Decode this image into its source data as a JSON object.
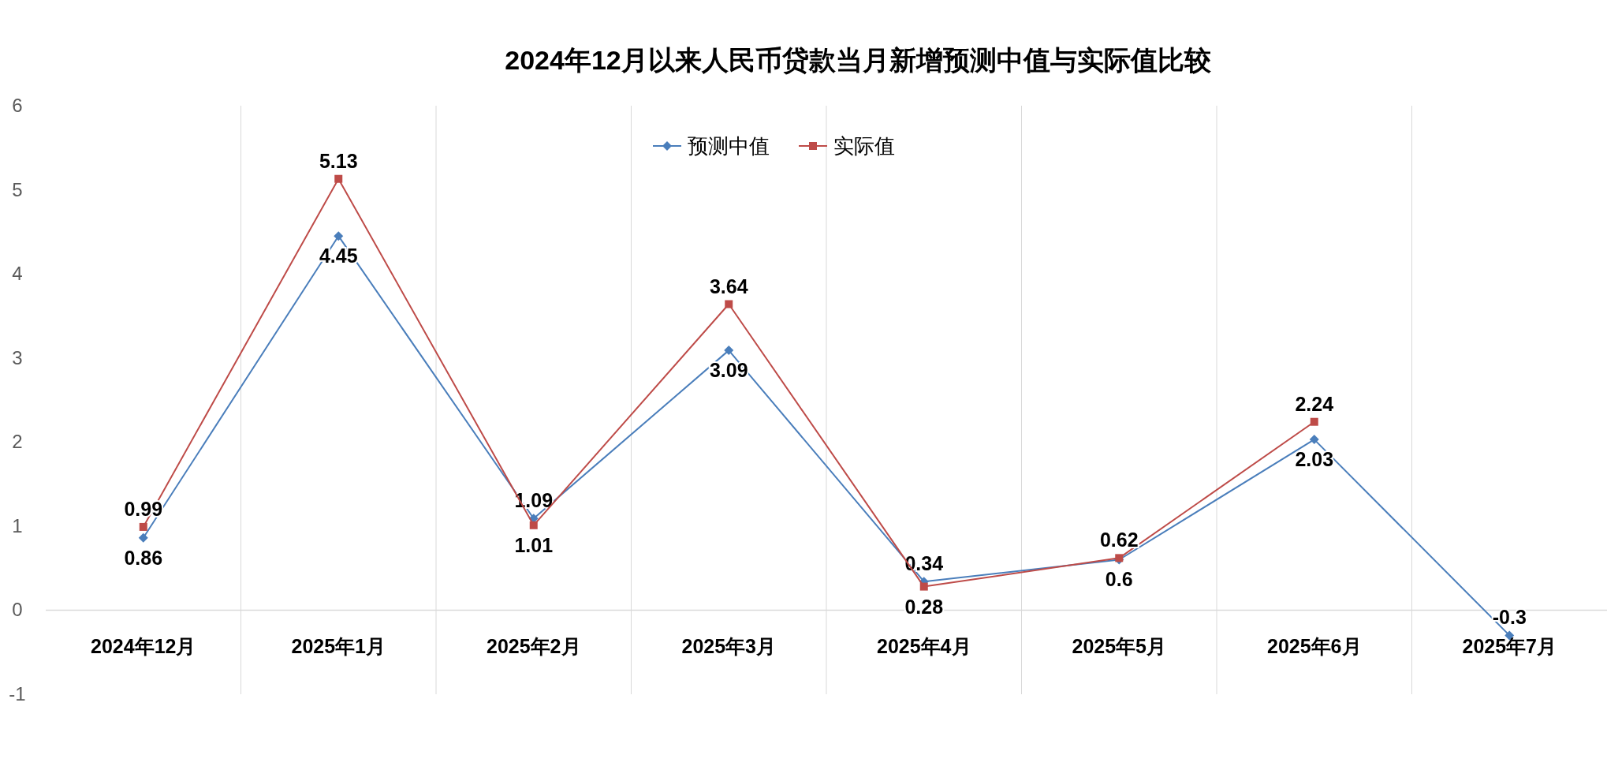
{
  "chart_data": {
    "type": "line",
    "title": "2024年12月以来人民币贷款当月新增预测中值与实际值比较",
    "categories": [
      "2024年12月",
      "2025年1月",
      "2025年2月",
      "2025年3月",
      "2025年4月",
      "2025年5月",
      "2025年6月",
      "2025年7月"
    ],
    "series": [
      {
        "name": "预测中值",
        "color": "#4a7ebb",
        "marker": "diamond",
        "values": [
          0.86,
          4.45,
          1.09,
          3.09,
          0.34,
          0.6,
          2.03,
          -0.3
        ]
      },
      {
        "name": "实际值",
        "color": "#be4b48",
        "marker": "square",
        "values": [
          0.99,
          5.13,
          1.01,
          3.64,
          0.28,
          0.62,
          2.24,
          null
        ]
      }
    ],
    "ylim": [
      -1,
      6
    ],
    "yticks": [
      -1,
      0,
      1,
      2,
      3,
      4,
      5,
      6
    ],
    "grid": "x",
    "legend": "top",
    "data_labels": true
  }
}
